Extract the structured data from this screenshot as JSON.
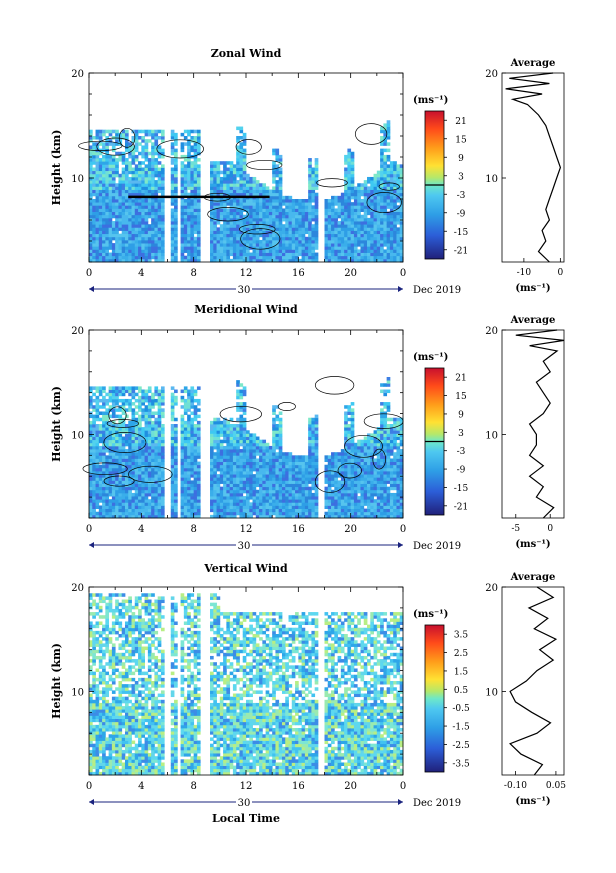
{
  "date_label": "Dec 2019",
  "day_label": "30",
  "xlabel_bottom": "Local Time",
  "chart_data": [
    {
      "type": "heatmap",
      "title": "Zonal Wind",
      "xlabel": "",
      "ylabel": "Height (km)",
      "xlim": [
        0,
        24
      ],
      "ylim": [
        2,
        20
      ],
      "xticks": [
        "0",
        "4",
        "8",
        "12",
        "16",
        "20",
        "0"
      ],
      "yticks": [
        "10",
        "20"
      ],
      "colorbar": {
        "unit": "(ms⁻¹)",
        "range": [
          -24,
          24
        ],
        "ticks": [
          "21",
          "15",
          "9",
          "3",
          "-3",
          "-9",
          "-15",
          "-21"
        ],
        "contour_level": 0
      },
      "profile": {
        "title": "Average",
        "xlabel": "(ms⁻¹)",
        "xlim": [
          -16,
          1
        ],
        "xticks": [
          "-10",
          "0"
        ],
        "height": [
          2,
          3,
          4,
          5,
          6,
          7,
          8,
          9,
          10,
          11,
          12,
          13,
          14,
          15,
          16,
          17,
          17.5,
          18,
          18.5,
          19,
          19.5,
          20
        ],
        "value": [
          -3,
          -6,
          -4,
          -5,
          -3,
          -4,
          -3,
          -2,
          -1,
          0,
          -1,
          -2,
          -3,
          -4,
          -6,
          -9,
          -13,
          -5,
          -15,
          -3,
          -14,
          -2
        ]
      }
    },
    {
      "type": "heatmap",
      "title": "Meridional Wind",
      "xlabel": "",
      "ylabel": "Height (km)",
      "xlim": [
        0,
        24
      ],
      "ylim": [
        2,
        20
      ],
      "xticks": [
        "0",
        "4",
        "8",
        "12",
        "16",
        "20",
        "0"
      ],
      "yticks": [
        "10",
        "20"
      ],
      "colorbar": {
        "unit": "(ms⁻¹)",
        "range": [
          -24,
          24
        ],
        "ticks": [
          "21",
          "15",
          "9",
          "3",
          "-3",
          "-9",
          "-15",
          "-21"
        ],
        "contour_level": 0
      },
      "profile": {
        "title": "Average",
        "xlabel": "(ms⁻¹)",
        "xlim": [
          -7,
          2
        ],
        "xticks": [
          "-5",
          "0"
        ],
        "height": [
          2,
          3,
          4,
          5,
          6,
          7,
          8,
          9,
          10,
          11,
          12,
          13,
          14,
          15,
          16,
          17,
          18,
          18.5,
          19,
          19.5,
          20
        ],
        "value": [
          -1,
          0.5,
          -2,
          -1,
          -3,
          -1,
          -3,
          -2,
          -2,
          -3,
          -1,
          0,
          -1,
          -2,
          0,
          -1,
          1,
          -3,
          2,
          -5,
          1
        ]
      }
    },
    {
      "type": "heatmap",
      "title": "Vertical Wind",
      "xlabel": "Local Time",
      "ylabel": "Height (km)",
      "xlim": [
        0,
        24
      ],
      "ylim": [
        2,
        20
      ],
      "xticks": [
        "0",
        "4",
        "8",
        "12",
        "16",
        "20",
        "0"
      ],
      "yticks": [
        "10",
        "20"
      ],
      "colorbar": {
        "unit": "(ms⁻¹)",
        "range": [
          -4,
          4
        ],
        "ticks": [
          "3.5",
          "2.5",
          "1.5",
          "0.5",
          "-0.5",
          "-1.5",
          "-2.5",
          "-3.5"
        ]
      },
      "profile": {
        "title": "Average",
        "xlabel": "(ms⁻¹)",
        "xlim": [
          -0.15,
          0.08
        ],
        "xticks": [
          "-0.10",
          "0.05"
        ],
        "height": [
          2,
          3,
          4,
          5,
          6,
          7,
          8,
          9,
          10,
          11,
          12,
          13,
          14,
          15,
          16,
          17,
          18,
          19,
          20
        ],
        "value": [
          -0.03,
          0.0,
          -0.08,
          -0.12,
          -0.02,
          0.03,
          -0.04,
          -0.1,
          -0.12,
          -0.06,
          -0.02,
          0.04,
          -0.01,
          0.05,
          -0.03,
          0.02,
          -0.05,
          0.04,
          -0.02
        ]
      }
    }
  ]
}
